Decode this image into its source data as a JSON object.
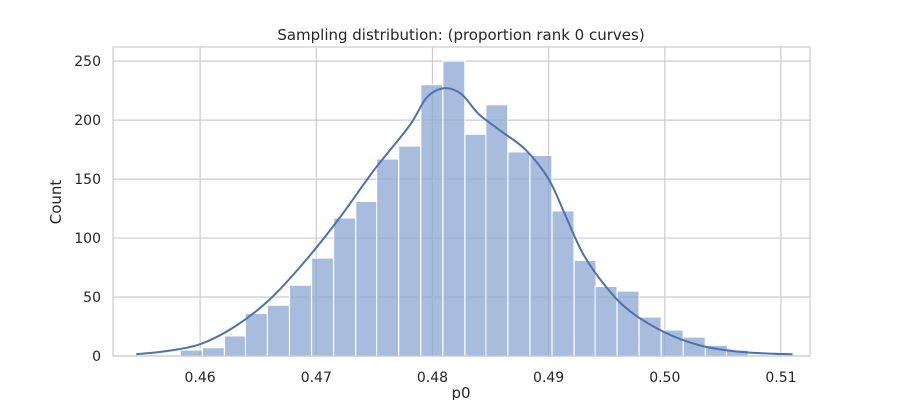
{
  "chart_data": {
    "type": "bar",
    "title": "Sampling distribution: (proportion rank 0 curves)",
    "xlabel": "p0",
    "ylabel": "Count",
    "xlim": [
      0.4525,
      0.5125
    ],
    "ylim": [
      0,
      262
    ],
    "x_ticks": [
      0.46,
      0.47,
      0.48,
      0.49,
      0.5,
      0.51
    ],
    "x_tick_labels": [
      "0.46",
      "0.47",
      "0.48",
      "0.49",
      "0.50",
      "0.51"
    ],
    "y_ticks": [
      0,
      50,
      100,
      150,
      200,
      250
    ],
    "y_tick_labels": [
      "0",
      "50",
      "100",
      "150",
      "200",
      "250"
    ],
    "grid": true,
    "bin_width": 0.00188,
    "bins_start": [
      0.4583,
      0.4602,
      0.4621,
      0.4639,
      0.4658,
      0.4677,
      0.4696,
      0.4715,
      0.4734,
      0.4752,
      0.4771,
      0.479,
      0.4809,
      0.4828,
      0.4846,
      0.4865,
      0.4884,
      0.4903,
      0.4922,
      0.494,
      0.4959,
      0.4978,
      0.4997,
      0.5016,
      0.5035,
      0.5053,
      0.5072
    ],
    "counts": [
      5,
      7,
      17,
      36,
      43,
      60,
      83,
      117,
      131,
      167,
      178,
      230,
      250,
      188,
      213,
      173,
      170,
      123,
      81,
      59,
      55,
      33,
      22,
      16,
      9,
      5,
      1
    ],
    "kde": {
      "x": [
        0.4545,
        0.457,
        0.46,
        0.463,
        0.466,
        0.469,
        0.472,
        0.475,
        0.478,
        0.4795,
        0.481,
        0.4825,
        0.484,
        0.486,
        0.488,
        0.49,
        0.4915,
        0.493,
        0.495,
        0.497,
        0.5,
        0.503,
        0.506,
        0.509,
        0.511
      ],
      "y": [
        1.5,
        4,
        10,
        25,
        48,
        80,
        117,
        158,
        195,
        219,
        227,
        222,
        205,
        190,
        175,
        150,
        118,
        86,
        58,
        38,
        20,
        9,
        4,
        2,
        1.5
      ]
    },
    "bar_color": "#8fa9d3",
    "bar_opacity": 0.78,
    "line_color": "#4c72b0"
  }
}
